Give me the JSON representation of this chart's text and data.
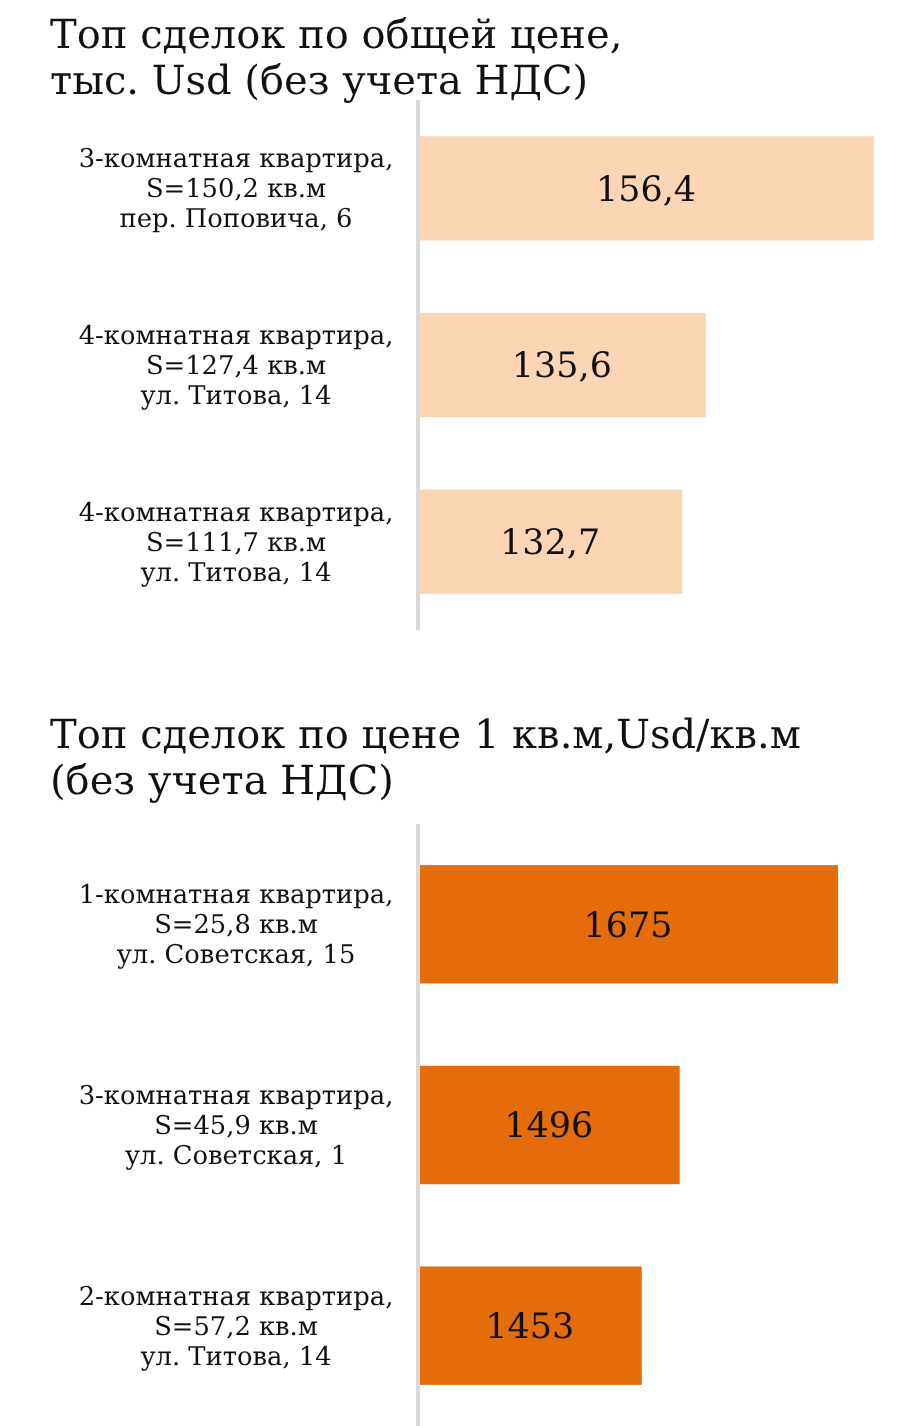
{
  "chart_data": [
    {
      "type": "bar",
      "orientation": "horizontal",
      "title": "Топ сделок по общей цене,\nтыс. Usd (без учета НДС)",
      "categories": [
        "3-комнатная квартира,\nS=150,2 кв.м\nпер. Поповича, 6",
        "4-комнатная квартира,\nS=127,4 кв.м\nул. Титова, 14",
        "4-комнатная квартира,\nS=111,7 кв.м\nул. Титова, 14"
      ],
      "values": [
        156.4,
        135.6,
        132.7
      ],
      "value_labels": [
        "156,4",
        "135,6",
        "132,7"
      ],
      "color": "#fcd5b5",
      "xlim": [
        100,
        156.4
      ],
      "tick_labels": "y"
    },
    {
      "type": "bar",
      "orientation": "horizontal",
      "title": "Топ сделок по цене 1 кв.м,Usd/кв.м\n(без учета НДС)",
      "categories": [
        "1-комнатная квартира,\nS=25,8 кв.м\nул. Советская, 15",
        "3-комнатная квартира,\nS=45,9 кв.м\nул. Советская, 1",
        "2-комнатная квартира,\nS=57,2 кв.м\nул. Титова, 14"
      ],
      "values": [
        1675,
        1496,
        1453
      ],
      "data_labels": true,
      "color": "#e46c0a",
      "xlim": [
        1200,
        1675
      ],
      "tick_labels": "y"
    }
  ]
}
